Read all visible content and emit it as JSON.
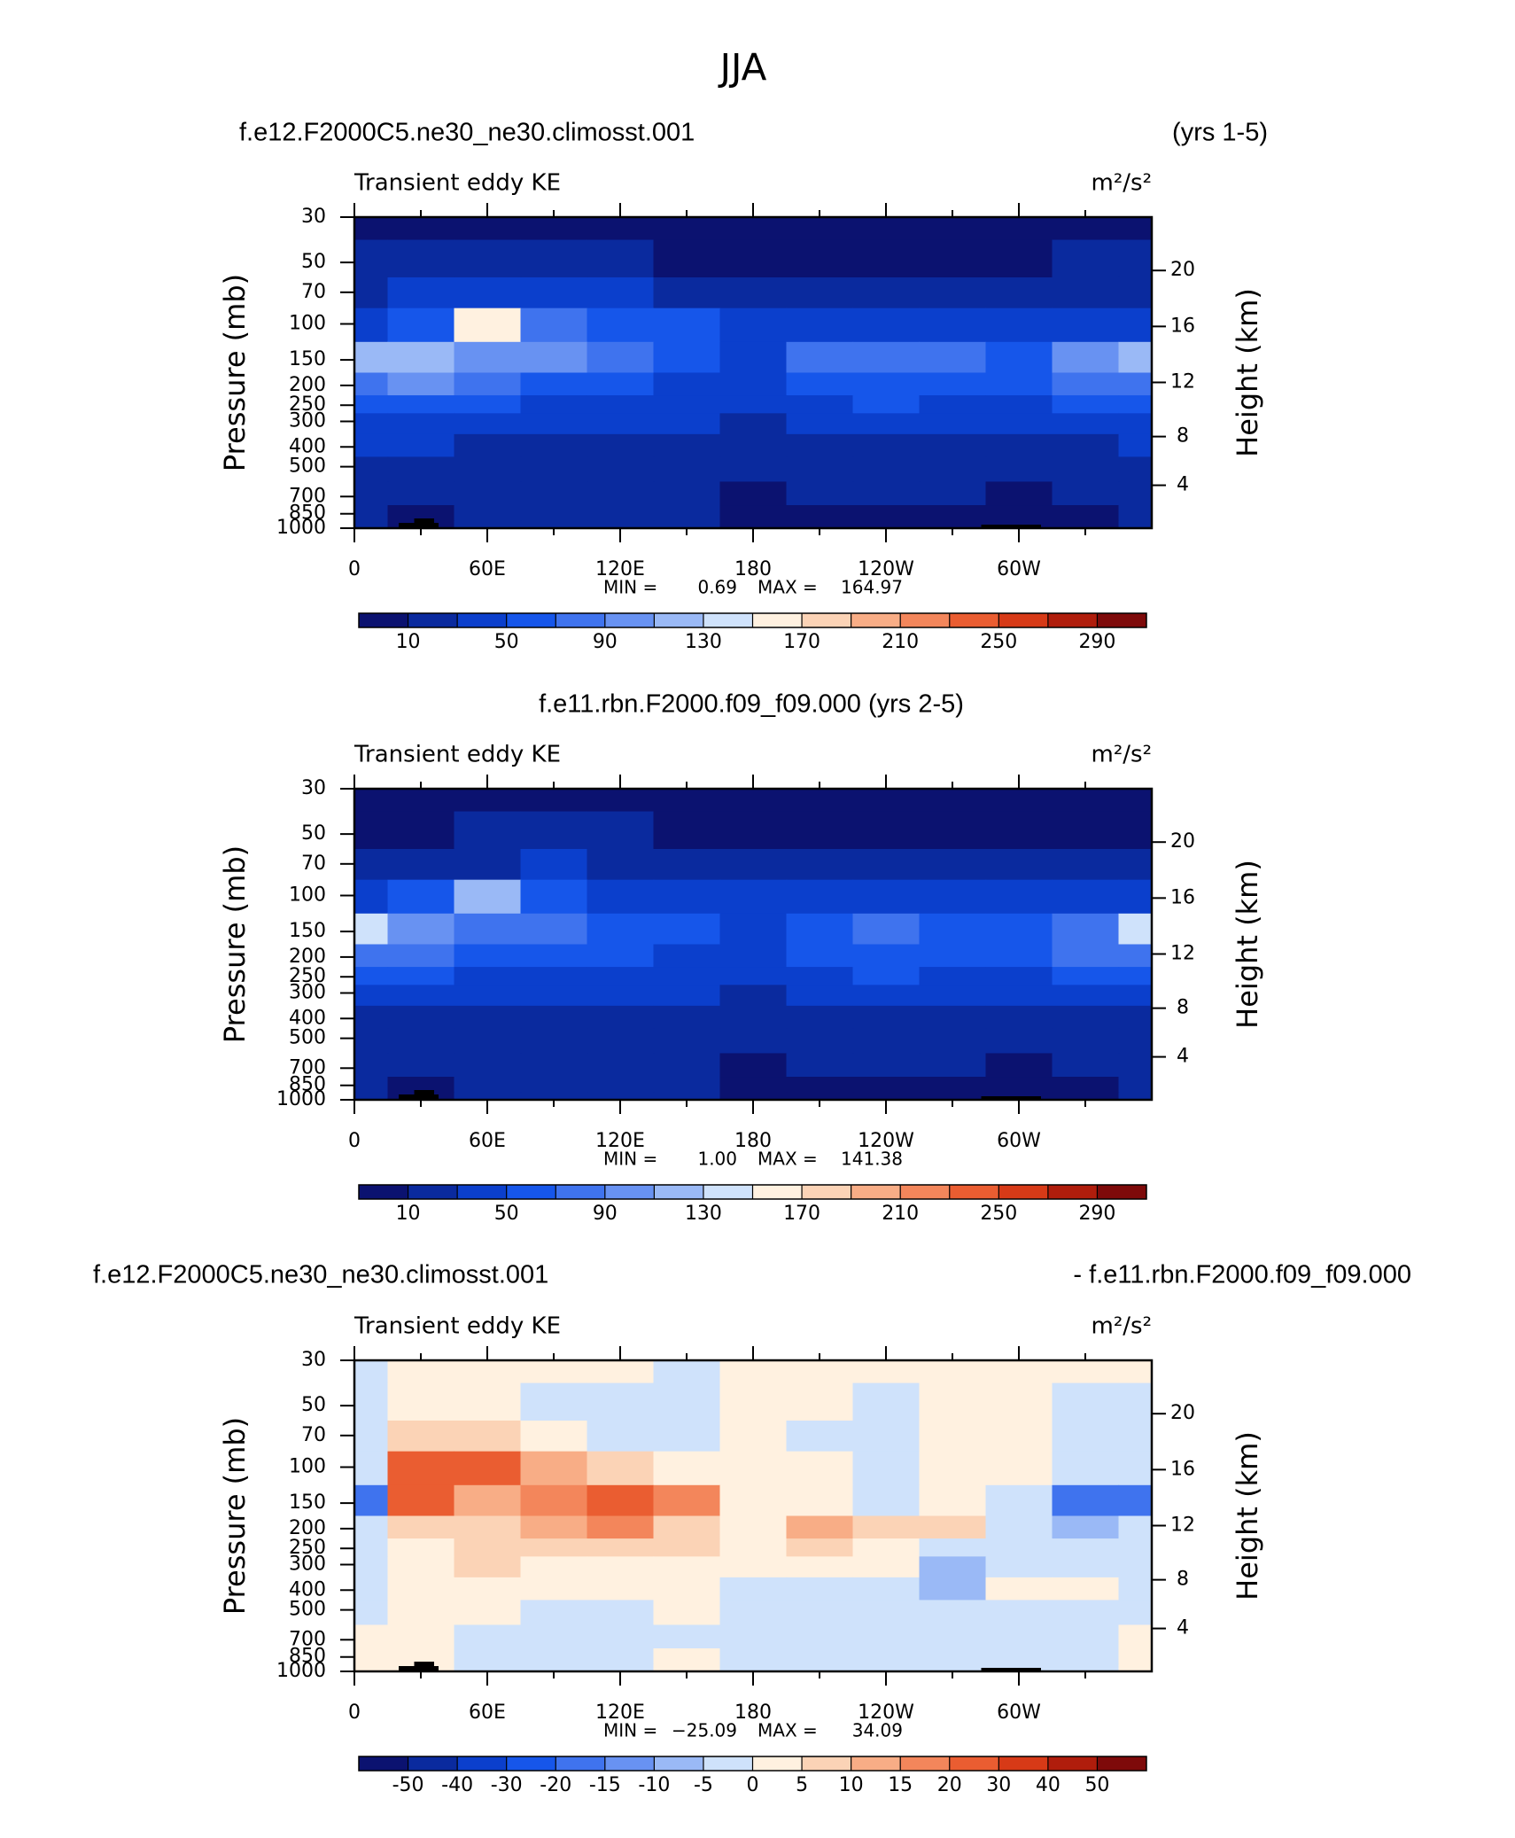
{
  "title": "JJA",
  "chart_data": [
    {
      "type": "contour",
      "left_title": "f.e12.F2000C5.ne30_ne30.climosst.001",
      "right_title": "(yrs 1-5)",
      "subtitle": "Transient eddy KE",
      "units": "m²/s²",
      "ylabel": "Pressure (mb)",
      "y2label": "Height (km)",
      "log_scale": true,
      "ylim": [
        1000,
        30
      ],
      "yticks": [
        30,
        50,
        70,
        100,
        150,
        200,
        250,
        300,
        400,
        500,
        700,
        850,
        1000
      ],
      "y2ticks": [
        4,
        8,
        12,
        16,
        20
      ],
      "xlim": [
        0,
        360
      ],
      "xticks": [
        0,
        {
          "value": 60,
          "label": "60E"
        },
        {
          "value": 120,
          "label": "120E"
        },
        180,
        {
          "value": 240,
          "label": "120W"
        },
        {
          "value": 300,
          "label": "60W"
        }
      ],
      "xminorticks": [
        30,
        90,
        150,
        210,
        270,
        330
      ],
      "x": [
        0,
        30,
        60,
        90,
        120,
        150,
        180,
        210,
        240,
        270,
        300,
        330,
        360
      ],
      "y": [
        30,
        50,
        70,
        100,
        150,
        200,
        250,
        300,
        400,
        500,
        700,
        850,
        1000
      ],
      "z": [
        [
          5,
          5,
          5,
          5,
          5,
          5,
          5,
          5,
          5,
          5,
          5,
          5,
          5
        ],
        [
          10,
          12,
          15,
          20,
          12,
          8,
          8,
          8,
          8,
          8,
          8,
          10,
          10
        ],
        [
          25,
          30,
          35,
          35,
          30,
          25,
          20,
          20,
          18,
          18,
          18,
          22,
          25
        ],
        [
          45,
          60,
          150,
          70,
          50,
          50,
          45,
          40,
          35,
          35,
          35,
          40,
          45
        ],
        [
          110,
          120,
          100,
          90,
          75,
          60,
          45,
          70,
          85,
          70,
          60,
          90,
          110
        ],
        [
          80,
          90,
          70,
          60,
          55,
          45,
          40,
          60,
          65,
          50,
          55,
          80,
          80
        ],
        [
          55,
          60,
          50,
          45,
          40,
          35,
          35,
          45,
          50,
          40,
          40,
          55,
          55
        ],
        [
          40,
          40,
          40,
          35,
          32,
          30,
          28,
          32,
          35,
          30,
          30,
          40,
          40
        ],
        [
          30,
          30,
          28,
          25,
          25,
          25,
          22,
          25,
          25,
          22,
          22,
          28,
          30
        ],
        [
          25,
          25,
          22,
          20,
          20,
          20,
          15,
          15,
          18,
          18,
          15,
          15,
          25
        ],
        [
          20,
          15,
          18,
          18,
          18,
          15,
          8,
          10,
          10,
          10,
          8,
          10,
          20
        ],
        [
          12,
          8,
          12,
          15,
          15,
          12,
          5,
          7,
          7,
          7,
          5,
          8,
          12
        ],
        [
          10,
          5,
          10,
          12,
          12,
          10,
          5,
          5,
          5,
          5,
          5,
          8,
          10
        ]
      ],
      "stats": {
        "names": [
          "MIN =",
          "MAX ="
        ],
        "values": [
          0.69,
          164.97
        ],
        "value_labels": [
          "0.69",
          "164.97"
        ]
      },
      "levels": [
        10,
        30,
        50,
        70,
        90,
        110,
        130,
        150,
        170,
        190,
        210,
        230,
        250,
        270,
        290
      ],
      "level_ticks": [
        10,
        50,
        90,
        130,
        170,
        210,
        250,
        290
      ],
      "colors": [
        "#0b1270",
        "#0a2a9e",
        "#0b3fcc",
        "#1656ea",
        "#3f73ee",
        "#6892f2",
        "#9ab9f6",
        "#cfe2fb",
        "#fff1e0",
        "#fbd3b6",
        "#f8ad86",
        "#f3865b",
        "#ea5d31",
        "#d73a17",
        "#b01d0c",
        "#7e0a0a"
      ]
    },
    {
      "type": "contour",
      "center_title": "f.e11.rbn.F2000.f09_f09.000 (yrs 2-5)",
      "subtitle": "Transient eddy KE",
      "units": "m²/s²",
      "ylabel": "Pressure (mb)",
      "y2label": "Height (km)",
      "log_scale": true,
      "ylim": [
        1000,
        30
      ],
      "yticks": [
        30,
        50,
        70,
        100,
        150,
        200,
        250,
        300,
        400,
        500,
        700,
        850,
        1000
      ],
      "y2ticks": [
        4,
        8,
        12,
        16,
        20
      ],
      "xlim": [
        0,
        360
      ],
      "xticks": [
        0,
        {
          "value": 60,
          "label": "60E"
        },
        {
          "value": 120,
          "label": "120E"
        },
        180,
        {
          "value": 240,
          "label": "120W"
        },
        {
          "value": 300,
          "label": "60W"
        }
      ],
      "xminorticks": [
        30,
        90,
        150,
        210,
        270,
        330
      ],
      "x": [
        0,
        30,
        60,
        90,
        120,
        150,
        180,
        210,
        240,
        270,
        300,
        330,
        360
      ],
      "y": [
        30,
        50,
        70,
        100,
        150,
        200,
        250,
        300,
        400,
        500,
        700,
        850,
        1000
      ],
      "z": [
        [
          5,
          5,
          5,
          5,
          5,
          5,
          5,
          5,
          5,
          5,
          5,
          5,
          5
        ],
        [
          8,
          8,
          10,
          15,
          10,
          8,
          8,
          8,
          8,
          8,
          8,
          8,
          8
        ],
        [
          22,
          25,
          28,
          30,
          25,
          22,
          20,
          18,
          18,
          18,
          18,
          20,
          22
        ],
        [
          45,
          55,
          120,
          60,
          45,
          45,
          40,
          38,
          35,
          35,
          35,
          40,
          45
        ],
        [
          135,
          100,
          85,
          75,
          65,
          55,
          45,
          60,
          75,
          65,
          55,
          80,
          135
        ],
        [
          70,
          75,
          60,
          55,
          50,
          45,
          40,
          55,
          65,
          50,
          50,
          75,
          70
        ],
        [
          50,
          55,
          45,
          42,
          40,
          35,
          35,
          45,
          50,
          40,
          40,
          55,
          50
        ],
        [
          38,
          38,
          35,
          32,
          32,
          30,
          28,
          32,
          35,
          35,
          30,
          38,
          38
        ],
        [
          28,
          28,
          25,
          25,
          25,
          25,
          22,
          25,
          25,
          22,
          22,
          28,
          28
        ],
        [
          25,
          22,
          22,
          20,
          20,
          20,
          15,
          15,
          18,
          18,
          15,
          15,
          25
        ],
        [
          20,
          15,
          18,
          18,
          18,
          15,
          8,
          10,
          10,
          10,
          8,
          10,
          20
        ],
        [
          12,
          8,
          12,
          15,
          15,
          12,
          5,
          7,
          7,
          7,
          5,
          8,
          12
        ],
        [
          10,
          5,
          10,
          12,
          12,
          10,
          5,
          5,
          5,
          5,
          5,
          8,
          10
        ]
      ],
      "stats": {
        "names": [
          "MIN =",
          "MAX ="
        ],
        "values": [
          1,
          141.38
        ],
        "value_labels": [
          "1.00",
          "141.38"
        ]
      },
      "levels": [
        10,
        30,
        50,
        70,
        90,
        110,
        130,
        150,
        170,
        190,
        210,
        230,
        250,
        270,
        290
      ],
      "level_ticks": [
        10,
        50,
        90,
        130,
        170,
        210,
        250,
        290
      ],
      "colors": [
        "#0b1270",
        "#0a2a9e",
        "#0b3fcc",
        "#1656ea",
        "#3f73ee",
        "#6892f2",
        "#9ab9f6",
        "#cfe2fb",
        "#fff1e0",
        "#fbd3b6",
        "#f8ad86",
        "#f3865b",
        "#ea5d31",
        "#d73a17",
        "#b01d0c",
        "#7e0a0a"
      ]
    },
    {
      "type": "contour",
      "left_title": "f.e12.F2000C5.ne30_ne30.climosst.001",
      "right_title": "- f.e11.rbn.F2000.f09_f09.000",
      "subtitle": "Transient eddy KE",
      "units": "m²/s²",
      "ylabel": "Pressure (mb)",
      "y2label": "Height (km)",
      "log_scale": true,
      "ylim": [
        1000,
        30
      ],
      "yticks": [
        30,
        50,
        70,
        100,
        150,
        200,
        250,
        300,
        400,
        500,
        700,
        850,
        1000
      ],
      "y2ticks": [
        4,
        8,
        12,
        16,
        20
      ],
      "xlim": [
        0,
        360
      ],
      "xticks": [
        0,
        {
          "value": 60,
          "label": "60E"
        },
        {
          "value": 120,
          "label": "120E"
        },
        180,
        {
          "value": 240,
          "label": "120W"
        },
        {
          "value": 300,
          "label": "60W"
        }
      ],
      "xminorticks": [
        30,
        90,
        150,
        210,
        270,
        330
      ],
      "x": [
        0,
        30,
        60,
        90,
        120,
        150,
        180,
        210,
        240,
        270,
        300,
        330,
        360
      ],
      "y": [
        30,
        50,
        70,
        100,
        150,
        200,
        250,
        300,
        400,
        500,
        700,
        850,
        1000
      ],
      "z": [
        [
          -2,
          2,
          2,
          3,
          2,
          -2,
          3,
          2,
          2,
          2,
          2,
          2,
          2
        ],
        [
          -2,
          3,
          2,
          -2,
          -2,
          -3,
          2,
          2,
          -2,
          2,
          3,
          -2,
          -2
        ],
        [
          -2,
          5,
          5,
          3,
          -2,
          -2,
          2,
          -2,
          -2,
          2,
          2,
          -2,
          -2
        ],
        [
          -3,
          25,
          25,
          10,
          5,
          2,
          2,
          3,
          -3,
          2,
          2,
          -5,
          -3
        ],
        [
          -20,
          20,
          10,
          15,
          25,
          15,
          2,
          3,
          -5,
          2,
          -3,
          -20,
          -20
        ],
        [
          -5,
          5,
          5,
          10,
          15,
          8,
          3,
          12,
          8,
          5,
          -3,
          -8,
          -5
        ],
        [
          -3,
          3,
          5,
          5,
          5,
          5,
          3,
          5,
          3,
          -3,
          -5,
          -5,
          -3
        ],
        [
          -3,
          2,
          5,
          3,
          3,
          3,
          2,
          3,
          2,
          -8,
          -2,
          -3,
          -3
        ],
        [
          -3,
          3,
          2,
          2,
          2,
          2,
          -2,
          -2,
          -3,
          -8,
          2,
          2,
          -3
        ],
        [
          -2,
          3,
          2,
          -2,
          -2,
          2,
          -2,
          -2,
          -3,
          -3,
          -3,
          -2,
          -2
        ],
        [
          2,
          2,
          -2,
          -3,
          -2,
          -2,
          -2,
          -3,
          -2,
          -2,
          -3,
          -2,
          2
        ],
        [
          2,
          2,
          -2,
          -2,
          -2,
          2,
          -2,
          -2,
          -2,
          -2,
          -2,
          -2,
          2
        ],
        [
          2,
          2,
          -2,
          -2,
          -2,
          2,
          -2,
          -2,
          -2,
          -2,
          -2,
          -2,
          2
        ]
      ],
      "stats": {
        "names": [
          "MIN =",
          "MAX ="
        ],
        "values": [
          -25.09,
          34.09
        ],
        "value_labels": [
          "−25.09",
          "34.09"
        ]
      },
      "levels": [
        -50,
        -40,
        -30,
        -20,
        -15,
        -10,
        -5,
        0,
        5,
        10,
        15,
        20,
        30,
        40,
        50
      ],
      "level_ticks": [
        -50,
        -40,
        -30,
        -20,
        -15,
        -10,
        -5,
        0,
        5,
        10,
        15,
        20,
        30,
        40,
        50
      ],
      "colors": [
        "#0b1270",
        "#0a2a9e",
        "#0b3fcc",
        "#1656ea",
        "#3f73ee",
        "#6892f2",
        "#9ab9f6",
        "#cfe2fb",
        "#fff1e0",
        "#fbd3b6",
        "#f8ad86",
        "#f3865b",
        "#ea5d31",
        "#d73a17",
        "#b01d0c",
        "#7e0a0a"
      ]
    }
  ]
}
